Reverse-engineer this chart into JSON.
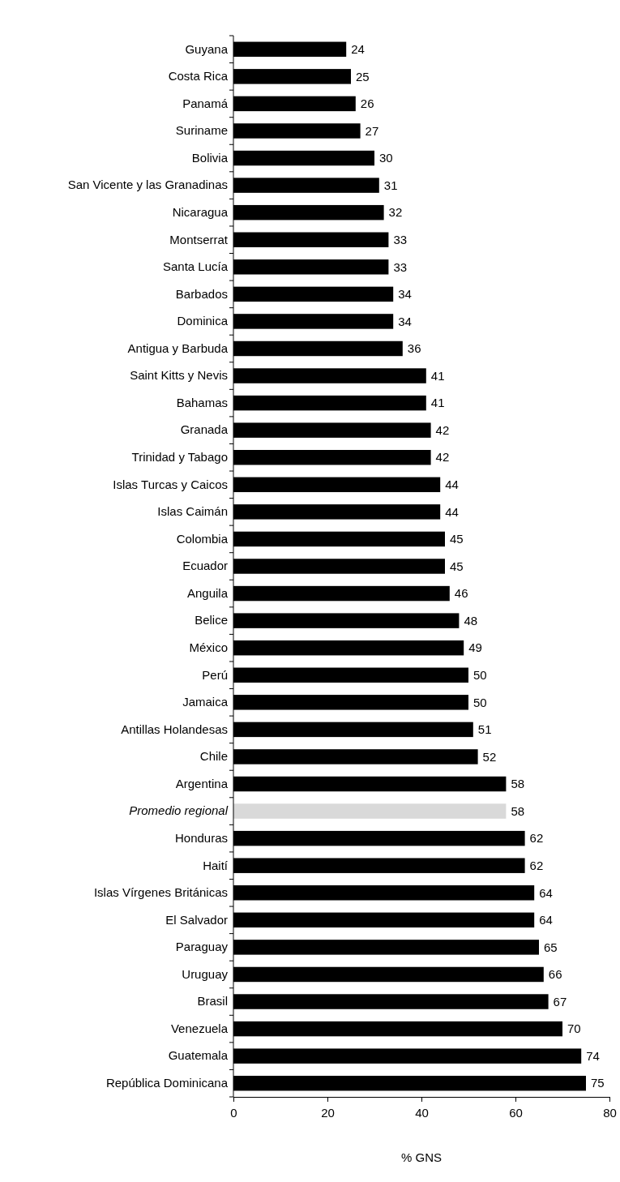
{
  "chart_data": {
    "type": "bar",
    "orientation": "horizontal",
    "xlabel": "% GNS",
    "categories": [
      "Guyana",
      "Costa Rica",
      "Panamá",
      "Suriname",
      "Bolivia",
      "San Vicente y las Granadinas",
      "Nicaragua",
      "Montserrat",
      "Santa Lucía",
      "Barbados",
      "Dominica",
      "Antigua y Barbuda",
      "Saint Kitts y Nevis",
      "Bahamas",
      "Granada",
      "Trinidad y Tabago",
      "Islas Turcas y Caicos",
      "Islas Caimán",
      "Colombia",
      "Ecuador",
      "Anguila",
      "Belice",
      "México",
      "Perú",
      "Jamaica",
      "Antillas Holandesas",
      "Chile",
      "Argentina",
      "Promedio regional",
      "Honduras",
      "Haití",
      "Islas Vírgenes Británicas",
      "El Salvador",
      "Paraguay",
      "Uruguay",
      "Brasil",
      "Venezuela",
      "Guatemala",
      "República Dominicana"
    ],
    "values": [
      24,
      25,
      26,
      27,
      30,
      31,
      32,
      33,
      33,
      34,
      34,
      36,
      41,
      41,
      42,
      42,
      44,
      44,
      45,
      45,
      46,
      48,
      49,
      50,
      50,
      51,
      52,
      58,
      58,
      62,
      62,
      64,
      64,
      65,
      66,
      67,
      70,
      74,
      75
    ],
    "colors": [
      "#000000",
      "#000000",
      "#000000",
      "#000000",
      "#000000",
      "#000000",
      "#000000",
      "#000000",
      "#000000",
      "#000000",
      "#000000",
      "#000000",
      "#000000",
      "#000000",
      "#000000",
      "#000000",
      "#000000",
      "#000000",
      "#000000",
      "#000000",
      "#000000",
      "#000000",
      "#000000",
      "#000000",
      "#000000",
      "#000000",
      "#000000",
      "#000000",
      "#d9d9d9",
      "#000000",
      "#000000",
      "#000000",
      "#000000",
      "#000000",
      "#000000",
      "#000000",
      "#000000",
      "#000000",
      "#000000"
    ],
    "xlim": [
      0,
      80
    ],
    "xticks": [
      0,
      20,
      40,
      60,
      80
    ],
    "data_labels": true,
    "grid": false
  }
}
